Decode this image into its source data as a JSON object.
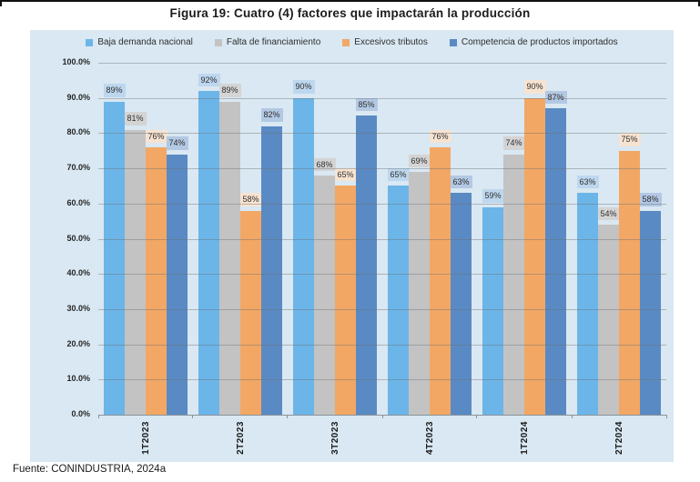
{
  "figure": {
    "title": "Figura 19: Cuatro (4) factores que impactarán la producción",
    "source": "Fuente: CONINDUSTRIA, 2024a"
  },
  "chart_data": {
    "type": "bar",
    "title": "Figura 19: Cuatro (4) factores que impactarán la producción",
    "categories": [
      "1T2023",
      "2T2023",
      "3T2023",
      "4T2023",
      "1T2024",
      "2T2024"
    ],
    "series": [
      {
        "name": "Baja demanda nacional",
        "color": "#6CB5E8",
        "label_bg": "#BDD7EE",
        "values": [
          89,
          92,
          90,
          65,
          59,
          63
        ]
      },
      {
        "name": "Falta de financiamiento",
        "color": "#C3C3C3",
        "label_bg": "#D4D4D4",
        "values": [
          81,
          89,
          68,
          69,
          74,
          54
        ]
      },
      {
        "name": "Excesivos tributos",
        "color": "#F2A765",
        "label_bg": "#F7E3D1",
        "values": [
          76,
          58,
          65,
          76,
          90,
          75
        ]
      },
      {
        "name": "Competencia de productos importados",
        "color": "#5A8AC3",
        "label_bg": "#B3C8E3",
        "values": [
          74,
          82,
          85,
          63,
          87,
          58
        ]
      }
    ],
    "value_suffix": "%",
    "xlabel": "",
    "ylabel": "",
    "ylim": [
      0,
      100
    ],
    "ytick_labels": [
      "0.0%",
      "10.0%",
      "20.0%",
      "30.0%",
      "40.0%",
      "50.0%",
      "60.0%",
      "70.0%",
      "80.0%",
      "90.0%",
      "100.0%"
    ],
    "ytick_values": [
      0,
      10,
      20,
      30,
      40,
      50,
      60,
      70,
      80,
      90,
      100
    ],
    "grid": true,
    "legend_position": "top",
    "panel_bg": "#D9E8F2"
  }
}
